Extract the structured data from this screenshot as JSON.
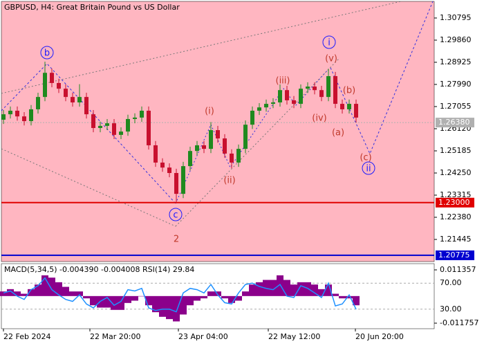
{
  "chart_data": {
    "type": "candlestick",
    "title": "GBPUSD, H4:  Great Britain Pound vs US Dollar",
    "open": [
      1.265,
      1.2673,
      1.2688,
      1.2664,
      1.2644,
      1.2694,
      1.2746,
      1.2848,
      1.2805,
      1.2781,
      1.2746,
      1.2723,
      1.2746,
      1.2673,
      1.2615,
      1.2624,
      1.2635,
      1.2586,
      1.26,
      1.2653,
      1.2659,
      1.2688,
      1.2542,
      1.2469,
      1.2448,
      1.2425,
      1.2337,
      1.2454,
      1.2518,
      1.2542,
      1.2527,
      1.2606,
      1.2571,
      1.2507,
      1.2469,
      1.2527,
      1.2629,
      1.2688,
      1.2702,
      1.2717,
      1.2723,
      1.2775,
      1.2732,
      1.2717,
      1.2781,
      1.279,
      1.2775,
      1.2746,
      1.2834,
      1.2717,
      1.2694,
      1.2717
    ],
    "high": [
      1.2691,
      1.2706,
      1.2706,
      1.2682,
      1.2712,
      1.2764,
      1.2895,
      1.2866,
      1.2823,
      1.2799,
      1.2764,
      1.28,
      1.2764,
      1.2691,
      1.2642,
      1.2653,
      1.2653,
      1.2618,
      1.2671,
      1.2677,
      1.2706,
      1.2706,
      1.256,
      1.2487,
      1.2466,
      1.2443,
      1.2472,
      1.2536,
      1.256,
      1.256,
      1.264,
      1.2624,
      1.2589,
      1.2525,
      1.2545,
      1.2647,
      1.2706,
      1.272,
      1.2735,
      1.2741,
      1.2799,
      1.2793,
      1.275,
      1.2799,
      1.2808,
      1.2808,
      1.2793,
      1.2865,
      1.2852,
      1.2735,
      1.2735,
      1.2735
    ],
    "low": [
      1.2632,
      1.2655,
      1.2646,
      1.2626,
      1.2626,
      1.2676,
      1.2728,
      1.2787,
      1.2763,
      1.2728,
      1.2705,
      1.2705,
      1.2655,
      1.2597,
      1.2597,
      1.2606,
      1.2568,
      1.2568,
      1.2582,
      1.2635,
      1.2641,
      1.2524,
      1.2451,
      1.243,
      1.2407,
      1.23,
      1.2319,
      1.2436,
      1.25,
      1.2509,
      1.2509,
      1.2553,
      1.2489,
      1.2445,
      1.2451,
      1.2509,
      1.2611,
      1.267,
      1.2684,
      1.2699,
      1.2705,
      1.2714,
      1.2699,
      1.2699,
      1.2763,
      1.2757,
      1.2728,
      1.2728,
      1.2699,
      1.2676,
      1.2676,
      1.2638
    ],
    "close": [
      1.2673,
      1.2688,
      1.2664,
      1.2644,
      1.2694,
      1.2746,
      1.2848,
      1.2805,
      1.2781,
      1.2746,
      1.2723,
      1.2746,
      1.2673,
      1.2615,
      1.2624,
      1.2635,
      1.2586,
      1.26,
      1.2653,
      1.2659,
      1.2688,
      1.2542,
      1.2469,
      1.2448,
      1.2425,
      1.2337,
      1.2454,
      1.2518,
      1.2542,
      1.2527,
      1.2606,
      1.2571,
      1.2507,
      1.2469,
      1.2527,
      1.2629,
      1.2688,
      1.2702,
      1.2717,
      1.2723,
      1.2775,
      1.2732,
      1.2717,
      1.2781,
      1.279,
      1.2775,
      1.2746,
      1.2834,
      1.2717,
      1.2694,
      1.2717,
      1.2659
    ],
    "colors": {
      "up": "#1f8a1f",
      "down": "#c8102e",
      "background": "#ffb6c1"
    },
    "xlim": [
      -0.3,
      62.3
    ],
    "xticks": [
      {
        "value": 0,
        "label": "22 Feb 2024"
      },
      {
        "value": 12.5,
        "label": "22 Mar 20:00"
      },
      {
        "value": 25.3,
        "label": "23 Apr 04:00"
      },
      {
        "value": 38.3,
        "label": "22 May 12:00"
      },
      {
        "value": 50.9,
        "label": "20 Jun 20:00"
      }
    ],
    "ylim": [
      1.2051,
      1.31496
    ],
    "yticks": [
      {
        "value": 1.30795,
        "label": "1.30795"
      },
      {
        "value": 1.2986,
        "label": "1.29860"
      },
      {
        "value": 1.28925,
        "label": "1.28925"
      },
      {
        "value": 1.2799,
        "label": "1.27990"
      },
      {
        "value": 1.27055,
        "label": "1.27055"
      },
      {
        "value": 1.2612,
        "label": "1.26120"
      },
      {
        "value": 1.25185,
        "label": "1.25185"
      },
      {
        "value": 1.2425,
        "label": "1.24250"
      },
      {
        "value": 1.23315,
        "label": "1.23315"
      },
      {
        "value": 1.2238,
        "label": "1.22380"
      },
      {
        "value": 1.21445,
        "label": "1.21445"
      }
    ],
    "levels": [
      {
        "value": 1.2638,
        "label": "1.26380",
        "color": "#b0b0b0"
      },
      {
        "value": 1.23,
        "label": "1.23000",
        "color": "#e00000"
      },
      {
        "value": 1.20775,
        "label": "1.20775",
        "color": "#0000d0"
      }
    ],
    "annotations": [
      {
        "text": "b",
        "color": "#1a1aff",
        "circled": true
      },
      {
        "text": "c",
        "color": "#1a1aff",
        "circled": true
      },
      {
        "text": "2",
        "color": "#c0392b",
        "circled": false
      },
      {
        "text": "(i)",
        "color": "#c0392b",
        "circled": false
      },
      {
        "text": "(ii)",
        "color": "#c0392b",
        "circled": false
      },
      {
        "text": "(iii)",
        "color": "#c0392b",
        "circled": false
      },
      {
        "text": "(iv)",
        "color": "#c0392b",
        "circled": false
      },
      {
        "text": "(v)",
        "color": "#c0392b",
        "circled": false
      },
      {
        "text": "i",
        "color": "#1a1aff",
        "circled": true
      },
      {
        "text": "(a)",
        "color": "#c0392b",
        "circled": false
      },
      {
        "text": "(b)",
        "color": "#c0392b",
        "circled": false
      },
      {
        "text": "(c)",
        "color": "#c0392b",
        "circled": false
      },
      {
        "text": "ii",
        "color": "#1a1aff",
        "circled": true
      }
    ],
    "indicator": {
      "label": "MACD(5,34,5) -0.004390 -0.004008 RSI(14) 29.84",
      "macd": [
        0.002,
        0.003,
        0.002,
        0.001,
        0.003,
        0.005,
        0.009,
        0.008,
        0.006,
        0.004,
        0.002,
        0.002,
        -0.001,
        -0.004,
        -0.005,
        -0.005,
        -0.006,
        -0.006,
        -0.003,
        -0.002,
        0.0,
        -0.004,
        -0.007,
        -0.009,
        -0.01,
        -0.011,
        -0.008,
        -0.004,
        -0.002,
        -0.001,
        0.002,
        0.002,
        -0.001,
        -0.003,
        -0.002,
        0.002,
        0.005,
        0.006,
        0.007,
        0.007,
        0.009,
        0.007,
        0.005,
        0.006,
        0.006,
        0.005,
        0.003,
        0.005,
        0.001,
        -0.001,
        -0.001,
        -0.004
      ],
      "macd_color": "#8b008b",
      "rsi": [
        55,
        58,
        50,
        45,
        60,
        66,
        78,
        60,
        52,
        45,
        42,
        52,
        38,
        32,
        42,
        48,
        36,
        42,
        60,
        58,
        62,
        32,
        28,
        30,
        30,
        26,
        55,
        62,
        60,
        55,
        68,
        52,
        40,
        38,
        55,
        68,
        70,
        65,
        62,
        60,
        68,
        50,
        48,
        66,
        62,
        55,
        48,
        70,
        35,
        38,
        52,
        29.84
      ],
      "rsi_color": "#1e90ff",
      "macd_ylim": [
        -0.01416,
        0.01406
      ],
      "macd_ticks": [
        0.011357,
        -0.011757
      ],
      "rsi_ylim": [
        0,
        100
      ],
      "rsi_ticks": [
        {
          "value": 70,
          "label": "70.00"
        },
        {
          "value": 30,
          "label": "30.00"
        }
      ]
    }
  }
}
